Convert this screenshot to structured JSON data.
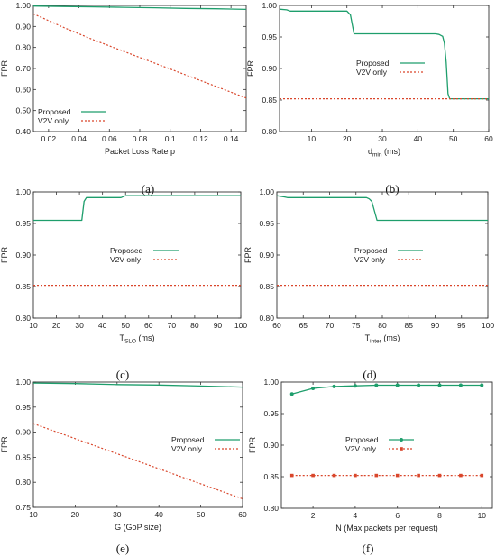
{
  "colors": {
    "proposed": "#1e9e6c",
    "v2v": "#d9462b",
    "axis": "#333333",
    "grid": "#bbbbbb"
  },
  "chart_data": [
    {
      "panel": "(a)",
      "type": "line",
      "xlabel": "Packet Loss Rate p",
      "ylabel": "FPR",
      "xlim": [
        0.01,
        0.15
      ],
      "ylim": [
        0.4,
        1.0
      ],
      "xticks": [
        0.02,
        0.04,
        0.06,
        0.08,
        0.1,
        0.12,
        0.14
      ],
      "xtick_labels": [
        "0.02",
        "0.04",
        "0.06",
        "0.08",
        "0.1",
        "0.12",
        "0.14"
      ],
      "yticks": [
        0.4,
        0.5,
        0.6,
        0.7,
        0.8,
        0.9,
        1.0
      ],
      "ytick_labels": [
        "0.40",
        "0.50",
        "0.60",
        "0.70",
        "0.80",
        "0.90",
        "1.00"
      ],
      "legend_position": "bottom-left",
      "grid": false,
      "series": [
        {
          "name": "Proposed",
          "style": "solid",
          "color": "#1e9e6c",
          "x": [
            0.01,
            0.03,
            0.05,
            0.07,
            0.09,
            0.11,
            0.13,
            0.15
          ],
          "y": [
            0.997,
            0.995,
            0.993,
            0.991,
            0.989,
            0.986,
            0.984,
            0.981
          ]
        },
        {
          "name": "V2V only",
          "style": "dotted",
          "color": "#d9462b",
          "x": [
            0.01,
            0.03,
            0.05,
            0.07,
            0.09,
            0.11,
            0.13,
            0.15
          ],
          "y": [
            0.96,
            0.895,
            0.835,
            0.78,
            0.725,
            0.67,
            0.615,
            0.56
          ]
        }
      ]
    },
    {
      "panel": "(b)",
      "type": "line",
      "xlabel": "d",
      "xlabel_sub": "min",
      "xlabel_unit": " (ms)",
      "ylabel": "FPR",
      "xlim": [
        1,
        60
      ],
      "ylim": [
        0.8,
        1.0
      ],
      "xticks": [
        10,
        20,
        30,
        40,
        50,
        60
      ],
      "xtick_labels": [
        "10",
        "20",
        "30",
        "40",
        "50",
        "60"
      ],
      "yticks": [
        0.8,
        0.85,
        0.9,
        0.95,
        1.0
      ],
      "ytick_labels": [
        "0.80",
        "0.85",
        "0.90",
        "0.95",
        "1.00"
      ],
      "legend_position": "center-right",
      "grid": false,
      "series": [
        {
          "name": "Proposed",
          "style": "solid",
          "color": "#1e9e6c",
          "x": [
            1,
            3,
            4,
            20,
            21,
            22,
            45,
            46,
            47,
            47.5,
            48,
            48.5,
            49,
            60
          ],
          "y": [
            0.994,
            0.993,
            0.991,
            0.991,
            0.985,
            0.955,
            0.955,
            0.954,
            0.951,
            0.94,
            0.91,
            0.86,
            0.852,
            0.852
          ]
        },
        {
          "name": "V2V only",
          "style": "dotted",
          "color": "#d9462b",
          "x": [
            1,
            60
          ],
          "y": [
            0.852,
            0.852
          ]
        }
      ]
    },
    {
      "panel": "(c)",
      "type": "line",
      "xlabel": "T",
      "xlabel_sub": "SLO",
      "xlabel_unit": " (ms)",
      "ylabel": "FPR",
      "xlim": [
        10,
        100
      ],
      "ylim": [
        0.8,
        1.0
      ],
      "xticks": [
        10,
        20,
        30,
        40,
        50,
        60,
        70,
        80,
        90,
        100
      ],
      "xtick_labels": [
        "10",
        "20",
        "30",
        "40",
        "50",
        "60",
        "70",
        "80",
        "90",
        "100"
      ],
      "yticks": [
        0.8,
        0.85,
        0.9,
        0.95,
        1.0
      ],
      "ytick_labels": [
        "0.80",
        "0.85",
        "0.90",
        "0.95",
        "1.00"
      ],
      "legend_position": "center-right",
      "grid": false,
      "series": [
        {
          "name": "Proposed",
          "style": "solid",
          "color": "#1e9e6c",
          "x": [
            10,
            31,
            32,
            33,
            48,
            50,
            100
          ],
          "y": [
            0.955,
            0.955,
            0.985,
            0.991,
            0.991,
            0.994,
            0.994
          ]
        },
        {
          "name": "V2V only",
          "style": "dotted",
          "color": "#d9462b",
          "x": [
            10,
            100
          ],
          "y": [
            0.852,
            0.852
          ]
        }
      ]
    },
    {
      "panel": "(d)",
      "type": "line",
      "xlabel": "T",
      "xlabel_sub": "inter",
      "xlabel_unit": " (ms)",
      "ylabel": "FPR",
      "xlim": [
        60,
        100
      ],
      "ylim": [
        0.8,
        1.0
      ],
      "xticks": [
        60,
        65,
        70,
        75,
        80,
        85,
        90,
        95,
        100
      ],
      "xtick_labels": [
        "60",
        "65",
        "70",
        "75",
        "80",
        "85",
        "90",
        "95",
        "100"
      ],
      "yticks": [
        0.8,
        0.85,
        0.9,
        0.95,
        1.0
      ],
      "ytick_labels": [
        "0.80",
        "0.85",
        "0.90",
        "0.95",
        "1.00"
      ],
      "legend_position": "center-right",
      "grid": false,
      "series": [
        {
          "name": "Proposed",
          "style": "solid",
          "color": "#1e9e6c",
          "x": [
            60,
            61.5,
            62,
            77,
            77.5,
            78,
            78.5,
            79,
            100
          ],
          "y": [
            0.994,
            0.992,
            0.991,
            0.991,
            0.989,
            0.985,
            0.97,
            0.955,
            0.955
          ]
        },
        {
          "name": "V2V only",
          "style": "dotted",
          "color": "#d9462b",
          "x": [
            60,
            100
          ],
          "y": [
            0.852,
            0.852
          ]
        }
      ]
    },
    {
      "panel": "(e)",
      "type": "line",
      "xlabel": "G (GoP size)",
      "ylabel": "FPR",
      "xlim": [
        10,
        60
      ],
      "ylim": [
        0.75,
        1.0
      ],
      "xticks": [
        10,
        20,
        30,
        40,
        50,
        60
      ],
      "xtick_labels": [
        "10",
        "20",
        "30",
        "40",
        "50",
        "60"
      ],
      "yticks": [
        0.75,
        0.8,
        0.85,
        0.9,
        0.95,
        1.0
      ],
      "ytick_labels": [
        "0.75",
        "0.80",
        "0.85",
        "0.90",
        "0.95",
        "1.00"
      ],
      "legend_position": "center-right",
      "grid": false,
      "series": [
        {
          "name": "Proposed",
          "style": "solid",
          "color": "#1e9e6c",
          "x": [
            10,
            20,
            30,
            40,
            50,
            60
          ],
          "y": [
            0.998,
            0.997,
            0.995,
            0.994,
            0.992,
            0.99
          ]
        },
        {
          "name": "V2V only",
          "style": "dotted",
          "color": "#d9462b",
          "x": [
            10,
            20,
            30,
            40,
            50,
            60
          ],
          "y": [
            0.917,
            0.887,
            0.857,
            0.827,
            0.797,
            0.767
          ]
        }
      ]
    },
    {
      "panel": "(f)",
      "type": "line",
      "xlabel": "N (Max packets per request)",
      "ylabel": "FPR",
      "xlim": [
        0.5,
        10.5
      ],
      "ylim": [
        0.8,
        1.0
      ],
      "xticks": [
        2,
        4,
        6,
        8,
        10
      ],
      "xtick_labels": [
        "2",
        "4",
        "6",
        "8",
        "10"
      ],
      "yticks": [
        0.8,
        0.85,
        0.9,
        0.95,
        1.0
      ],
      "ytick_labels": [
        "0.80",
        "0.85",
        "0.90",
        "0.95",
        "1.00"
      ],
      "legend_position": "center-right",
      "grid": false,
      "markers": true,
      "series": [
        {
          "name": "Proposed",
          "style": "solid",
          "color": "#1e9e6c",
          "x": [
            1,
            2,
            3,
            4,
            5,
            6,
            7,
            8,
            9,
            10
          ],
          "y": [
            0.981,
            0.99,
            0.993,
            0.994,
            0.995,
            0.995,
            0.995,
            0.995,
            0.995,
            0.995
          ]
        },
        {
          "name": "V2V only",
          "style": "dotted",
          "color": "#d9462b",
          "x": [
            1,
            2,
            3,
            4,
            5,
            6,
            7,
            8,
            9,
            10
          ],
          "y": [
            0.852,
            0.852,
            0.852,
            0.852,
            0.852,
            0.852,
            0.852,
            0.852,
            0.852,
            0.852
          ]
        }
      ]
    }
  ]
}
